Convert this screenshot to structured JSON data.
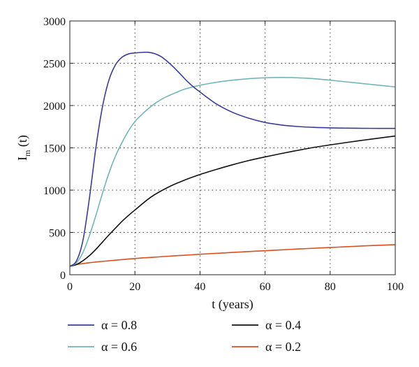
{
  "chart_data": {
    "type": "line",
    "title": "",
    "xlabel": "t (years)",
    "ylabel": {
      "main": "I",
      "sub": "m",
      "suffix": " (t)"
    },
    "xlim": [
      0,
      100
    ],
    "ylim": [
      0,
      3000
    ],
    "xticks": [
      0,
      20,
      40,
      60,
      80,
      100
    ],
    "yticks": [
      0,
      500,
      1000,
      1500,
      2000,
      2500,
      3000
    ],
    "grid": "dotted",
    "legend_position": "bottom",
    "series": [
      {
        "name": "α = 0.8",
        "color": "#3b3b9c",
        "x": [
          0,
          2,
          4,
          6,
          8,
          10,
          12,
          14,
          16,
          18,
          20,
          22,
          24,
          26,
          28,
          30,
          32,
          34,
          36,
          38,
          40,
          45,
          50,
          55,
          60,
          65,
          70,
          75,
          80,
          85,
          90,
          95,
          100
        ],
        "y": [
          100,
          160,
          400,
          900,
          1500,
          1980,
          2300,
          2480,
          2570,
          2610,
          2622,
          2628,
          2630,
          2615,
          2580,
          2520,
          2450,
          2370,
          2290,
          2220,
          2160,
          2020,
          1920,
          1850,
          1800,
          1770,
          1752,
          1742,
          1736,
          1733,
          1731,
          1730,
          1730
        ]
      },
      {
        "name": "α = 0.6",
        "color": "#6fb7b7",
        "x": [
          0,
          2,
          4,
          6,
          8,
          10,
          12,
          14,
          16,
          18,
          20,
          22,
          24,
          26,
          28,
          30,
          35,
          40,
          45,
          50,
          55,
          60,
          65,
          70,
          75,
          80,
          85,
          90,
          95,
          100
        ],
        "y": [
          100,
          140,
          260,
          460,
          700,
          960,
          1200,
          1400,
          1560,
          1700,
          1810,
          1890,
          1960,
          2020,
          2070,
          2110,
          2190,
          2240,
          2275,
          2300,
          2318,
          2328,
          2332,
          2328,
          2318,
          2300,
          2280,
          2260,
          2240,
          2220
        ]
      },
      {
        "name": "α = 0.4",
        "color": "#111111",
        "x": [
          0,
          2,
          4,
          6,
          8,
          10,
          12,
          14,
          16,
          18,
          20,
          25,
          30,
          35,
          40,
          45,
          50,
          55,
          60,
          65,
          70,
          75,
          80,
          85,
          90,
          95,
          100
        ],
        "y": [
          100,
          120,
          165,
          225,
          300,
          385,
          470,
          550,
          630,
          700,
          765,
          920,
          1030,
          1115,
          1185,
          1245,
          1300,
          1350,
          1393,
          1433,
          1470,
          1505,
          1535,
          1563,
          1590,
          1615,
          1640
        ]
      },
      {
        "name": "α = 0.2",
        "color": "#d94f1e",
        "x": [
          0,
          2,
          4,
          6,
          8,
          10,
          15,
          20,
          25,
          30,
          35,
          40,
          45,
          50,
          55,
          60,
          65,
          70,
          75,
          80,
          85,
          90,
          95,
          100
        ],
        "y": [
          100,
          120,
          132,
          142,
          150,
          158,
          175,
          192,
          205,
          218,
          230,
          242,
          253,
          264,
          274,
          284,
          294,
          304,
          313,
          322,
          331,
          340,
          348,
          356
        ]
      }
    ]
  }
}
